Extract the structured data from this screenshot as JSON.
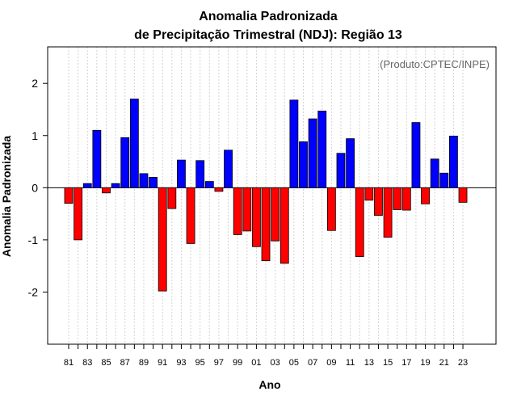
{
  "chart_data": {
    "type": "bar",
    "title": "Anomalia Padronizada",
    "subtitle": "de Precipitação Trimestral (NDJ): Região 13",
    "xlabel": "Ano",
    "ylabel": "Anomalia Padronizada",
    "credit": "(Produto:CPTEC/INPE)",
    "ylim": [
      -3,
      2.7
    ],
    "yticks": [
      -2,
      -1,
      0,
      1,
      2
    ],
    "ytick_labels": [
      "-2",
      "-1",
      "0",
      "1",
      "2"
    ],
    "xtick_labels": [
      "81",
      "83",
      "85",
      "87",
      "89",
      "91",
      "93",
      "95",
      "97",
      "99",
      "01",
      "03",
      "05",
      "07",
      "09",
      "11",
      "13",
      "15",
      "17",
      "19",
      "21",
      "23"
    ],
    "grid": true,
    "colors": {
      "positive": "#0000ff",
      "negative": "#ff0000",
      "grid": "#d3d3d3"
    },
    "categories": [
      "81",
      "82",
      "83",
      "84",
      "85",
      "86",
      "87",
      "88",
      "89",
      "90",
      "91",
      "92",
      "93",
      "94",
      "95",
      "96",
      "97",
      "98",
      "99",
      "00",
      "01",
      "02",
      "03",
      "04",
      "05",
      "06",
      "07",
      "08",
      "09",
      "10",
      "11",
      "12",
      "13",
      "14",
      "15",
      "16",
      "17",
      "18",
      "19",
      "20",
      "21",
      "22",
      "23"
    ],
    "values": [
      -0.3,
      -1.0,
      0.08,
      1.1,
      -0.1,
      0.08,
      0.96,
      1.7,
      0.27,
      0.2,
      -1.98,
      -0.4,
      0.53,
      -1.07,
      0.52,
      0.12,
      -0.07,
      0.72,
      -0.9,
      -0.83,
      -1.13,
      -1.4,
      -1.02,
      -1.45,
      1.68,
      0.88,
      1.32,
      1.47,
      -0.82,
      0.66,
      0.94,
      -1.32,
      -0.24,
      -0.53,
      -0.95,
      -0.42,
      -0.43,
      1.25,
      -0.31,
      0.55,
      0.28,
      0.99,
      -0.28
    ]
  }
}
